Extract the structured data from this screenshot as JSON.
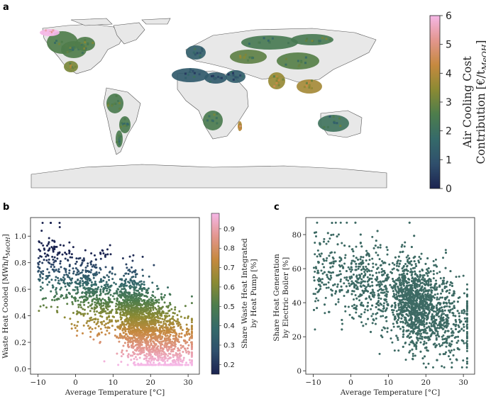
{
  "figure": {
    "panel_labels": [
      "a",
      "b",
      "c"
    ]
  },
  "chart_data": [
    {
      "panel": "a",
      "type": "heatmap",
      "description_kind": "world choropleth map",
      "colorbar": {
        "label_line1": "Air Cooling Cost",
        "label_line2": "Contribution [€/t",
        "label_sub": "MeOH",
        "label_end": "]",
        "ticks": [
          "0",
          "1",
          "2",
          "3",
          "4",
          "5",
          "6"
        ],
        "range": [
          0,
          6
        ],
        "colormap": [
          "#1c2450",
          "#2f4f6c",
          "#356a6a",
          "#4d7d4c",
          "#8b8a33",
          "#c6893f",
          "#e3968e",
          "#f5b7e6"
        ]
      },
      "regions": [
        {
          "name": "North America",
          "value": 2.6
        },
        {
          "name": "Alaska",
          "value": 6.0
        },
        {
          "name": "Mexico",
          "value": 3.2
        },
        {
          "name": "South America",
          "value": 2.5
        },
        {
          "name": "Western Europe",
          "value": 1.4
        },
        {
          "name": "North Africa",
          "value": 1.2
        },
        {
          "name": "Middle East",
          "value": 1.3
        },
        {
          "name": "Central Asia",
          "value": 2.8
        },
        {
          "name": "Russia",
          "value": 2.4
        },
        {
          "name": "China",
          "value": 2.7
        },
        {
          "name": "India",
          "value": 3.6
        },
        {
          "name": "Southeast Asia",
          "value": 3.8
        },
        {
          "name": "Southern Africa",
          "value": 2.5
        },
        {
          "name": "Australia",
          "value": 2.1
        },
        {
          "name": "Madagascar",
          "value": 4.0
        }
      ]
    },
    {
      "panel": "b",
      "type": "scatter",
      "xlabel": "Average Temperature [°C]",
      "ylabel": "Waste Heat Cooled [MWh/t",
      "ylabel_sub": "MeOH",
      "ylabel_end": "]",
      "xlim": [
        -12,
        33
      ],
      "ylim": [
        -0.04,
        1.14
      ],
      "xticks": [
        "−10",
        "0",
        "10",
        "20",
        "30"
      ],
      "yticks": [
        "0.0",
        "0.2",
        "0.4",
        "0.6",
        "0.8",
        "1.0"
      ],
      "colorbar": {
        "label_line1": "Share Waste Heat Integrated",
        "label_line2": "by Heat Pump [%]",
        "ticks": [
          "0.2",
          "0.3",
          "0.4",
          "0.5",
          "0.6",
          "0.7",
          "0.8",
          "0.9"
        ],
        "range": [
          0.15,
          0.98
        ]
      },
      "point_summary": {
        "count": 2600,
        "x_range": [
          -10,
          31
        ],
        "y_trend": "decreasing with temperature; y approx 0.78 at -5°C to 0.25 at 27°C",
        "color_rule": "color encodes heat-pump share, roughly 1 - y"
      }
    },
    {
      "panel": "c",
      "type": "scatter",
      "xlabel": "Average Temperature [°C]",
      "ylabel_line1": "Share Heat Generation",
      "ylabel_line2": "by Electric Boiler [%]",
      "xlim": [
        -12,
        33
      ],
      "ylim": [
        -2,
        90
      ],
      "xticks": [
        "−10",
        "0",
        "10",
        "20",
        "30"
      ],
      "yticks": [
        "0",
        "20",
        "40",
        "60",
        "80"
      ],
      "point_color": "#3d6a64",
      "point_summary": {
        "count": 2600,
        "x_range": [
          -10,
          31
        ],
        "y_trend": "decreasing with temperature; y approx 55% at 0°C to 30% at 28°C"
      }
    }
  ]
}
